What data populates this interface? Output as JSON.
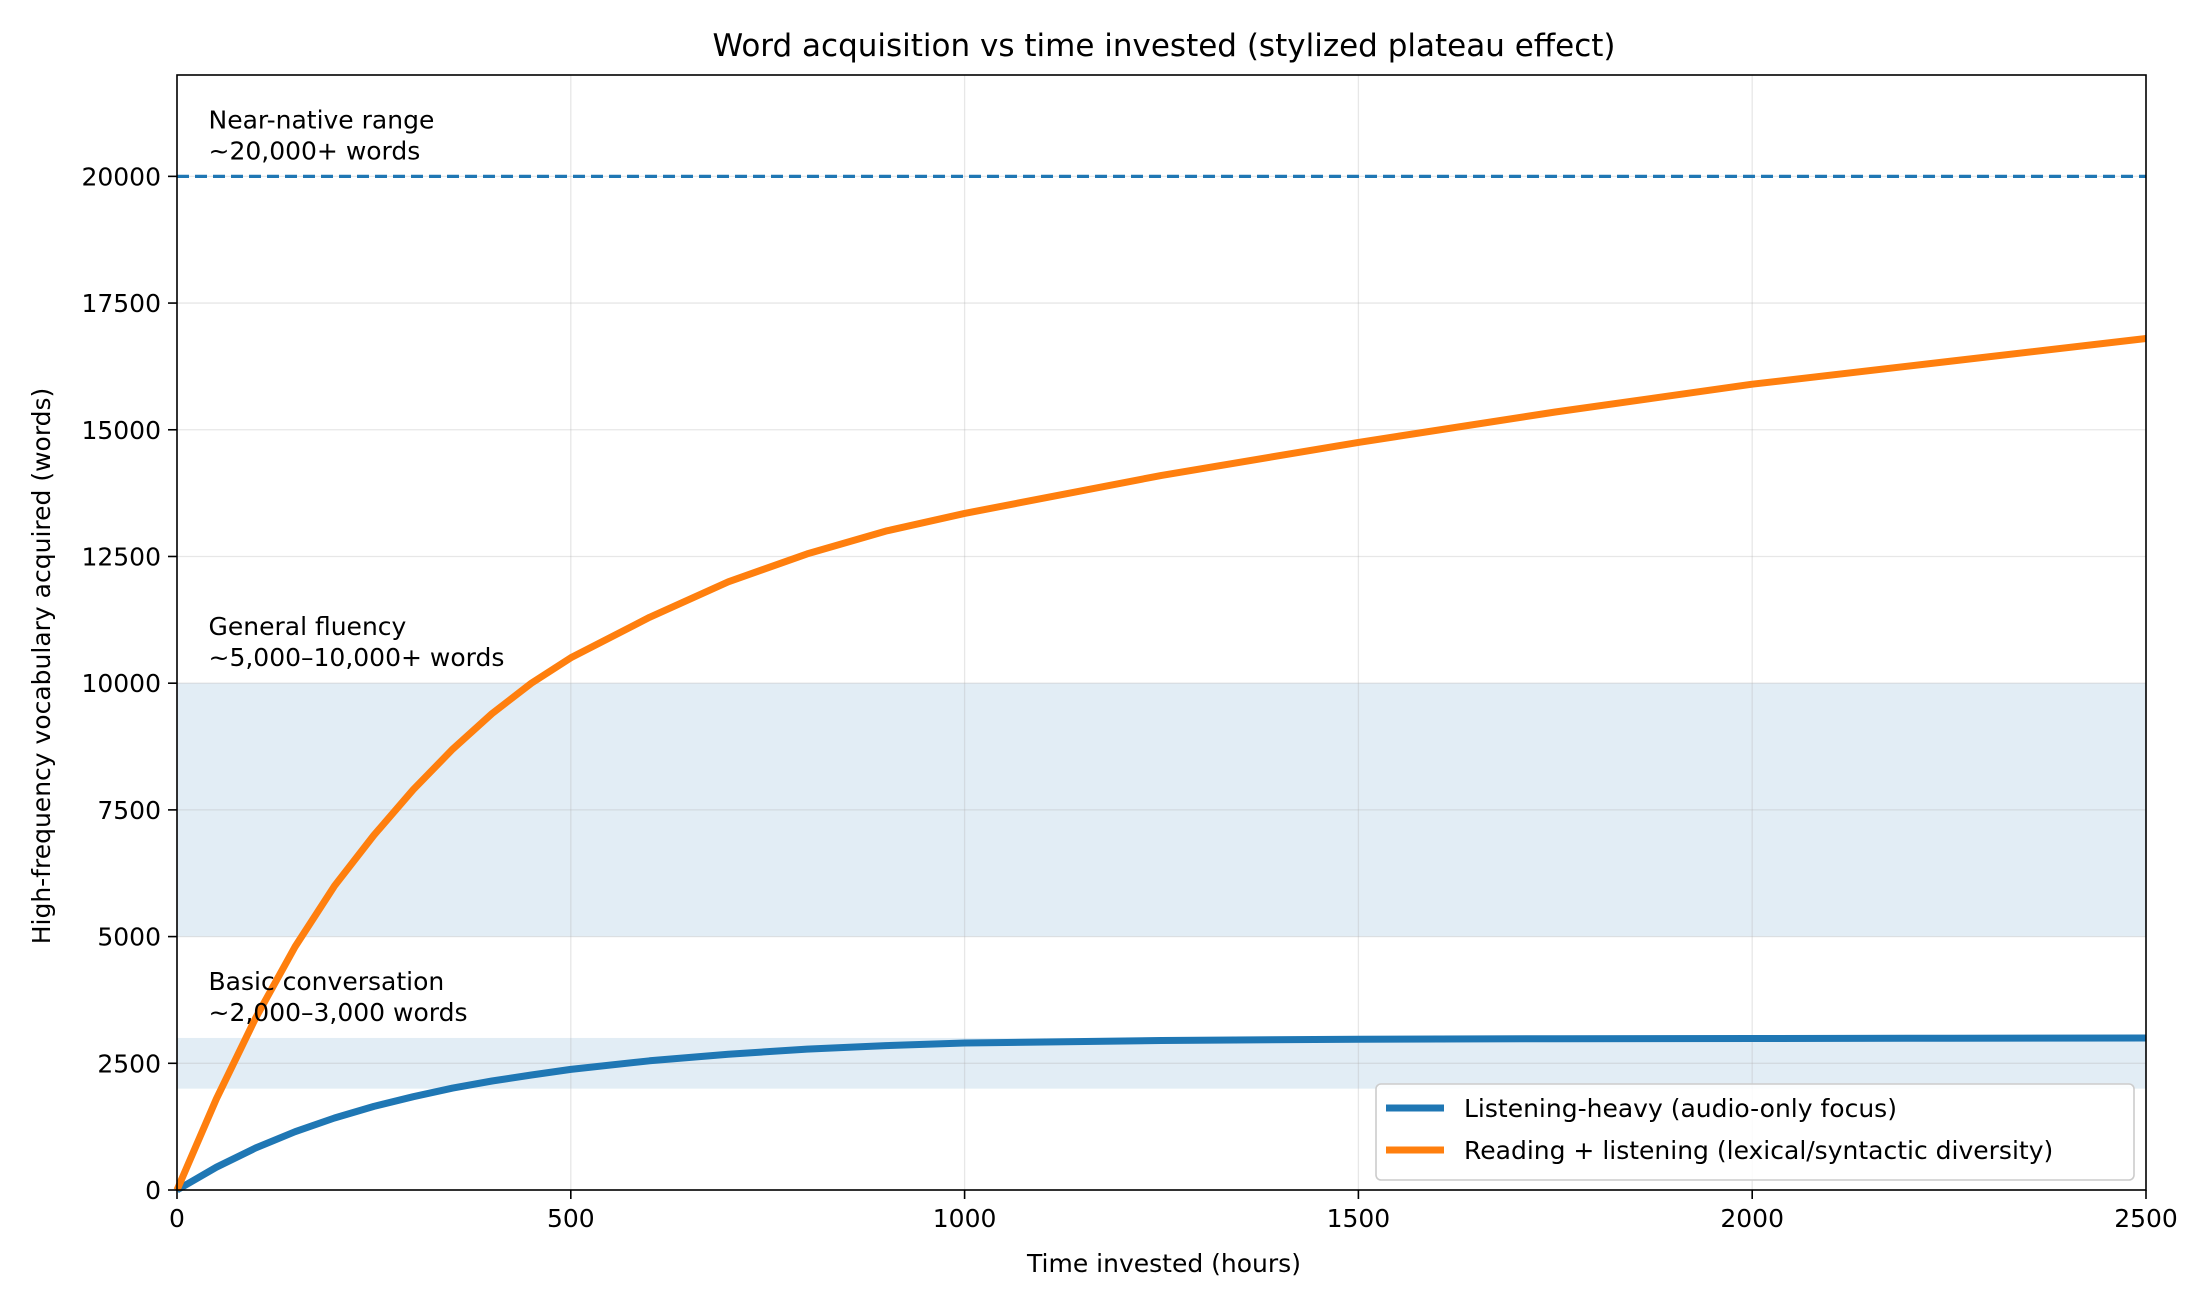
{
  "chart_data": {
    "type": "line",
    "title": "Word acquisition vs time invested (stylized plateau effect)",
    "xlabel": "Time invested (hours)",
    "ylabel": "High-frequency vocabulary acquired (words)",
    "xlim": [
      0,
      2500
    ],
    "ylim": [
      0,
      22000
    ],
    "xticks": [
      0,
      500,
      1000,
      1500,
      2000,
      2500
    ],
    "yticks": [
      0,
      2500,
      5000,
      7500,
      10000,
      12500,
      15000,
      17500,
      20000
    ],
    "grid": true,
    "legend_position": "lower-right",
    "series": [
      {
        "name": "Listening-heavy (audio-only focus)",
        "color": "#1f77b4",
        "x": [
          0,
          50,
          100,
          150,
          200,
          250,
          300,
          350,
          400,
          450,
          500,
          600,
          700,
          800,
          900,
          1000,
          1250,
          1500,
          1750,
          2000,
          2250,
          2500
        ],
        "y": [
          0,
          450,
          830,
          1150,
          1420,
          1650,
          1840,
          2010,
          2150,
          2270,
          2380,
          2550,
          2680,
          2780,
          2850,
          2900,
          2950,
          2975,
          2985,
          2990,
          2995,
          3000
        ]
      },
      {
        "name": "Reading + listening (lexical/syntactic diversity)",
        "color": "#ff7f0e",
        "x": [
          0,
          50,
          100,
          150,
          200,
          250,
          300,
          350,
          400,
          450,
          500,
          600,
          700,
          800,
          900,
          1000,
          1250,
          1500,
          1750,
          2000,
          2250,
          2500
        ],
        "y": [
          0,
          1800,
          3400,
          4800,
          6000,
          7000,
          7900,
          8700,
          9400,
          10000,
          10500,
          11300,
          12000,
          12550,
          13000,
          13350,
          14100,
          14750,
          15350,
          15900,
          16350,
          16800
        ]
      }
    ],
    "bands": [
      {
        "name": "basic-conversation-band",
        "ymin": 2000,
        "ymax": 3000,
        "color": "#1f77b4"
      },
      {
        "name": "general-fluency-band",
        "ymin": 5000,
        "ymax": 10000,
        "color": "#1f77b4"
      }
    ],
    "hlines": [
      {
        "name": "near-native-line",
        "y": 20000,
        "color": "#1f77b4",
        "style": "dashed"
      }
    ],
    "annotations": [
      {
        "name": "annotation-basic-conversation",
        "x": 40,
        "y": 3000,
        "lines": [
          "Basic conversation",
          "~2,000–3,000 words"
        ]
      },
      {
        "name": "annotation-general-fluency",
        "x": 40,
        "y": 10000,
        "lines": [
          "General fluency",
          "~5,000–10,000+ words"
        ]
      },
      {
        "name": "annotation-near-native",
        "x": 40,
        "y": 20000,
        "lines": [
          "Near-native range",
          "~20,000+ words"
        ]
      }
    ]
  }
}
